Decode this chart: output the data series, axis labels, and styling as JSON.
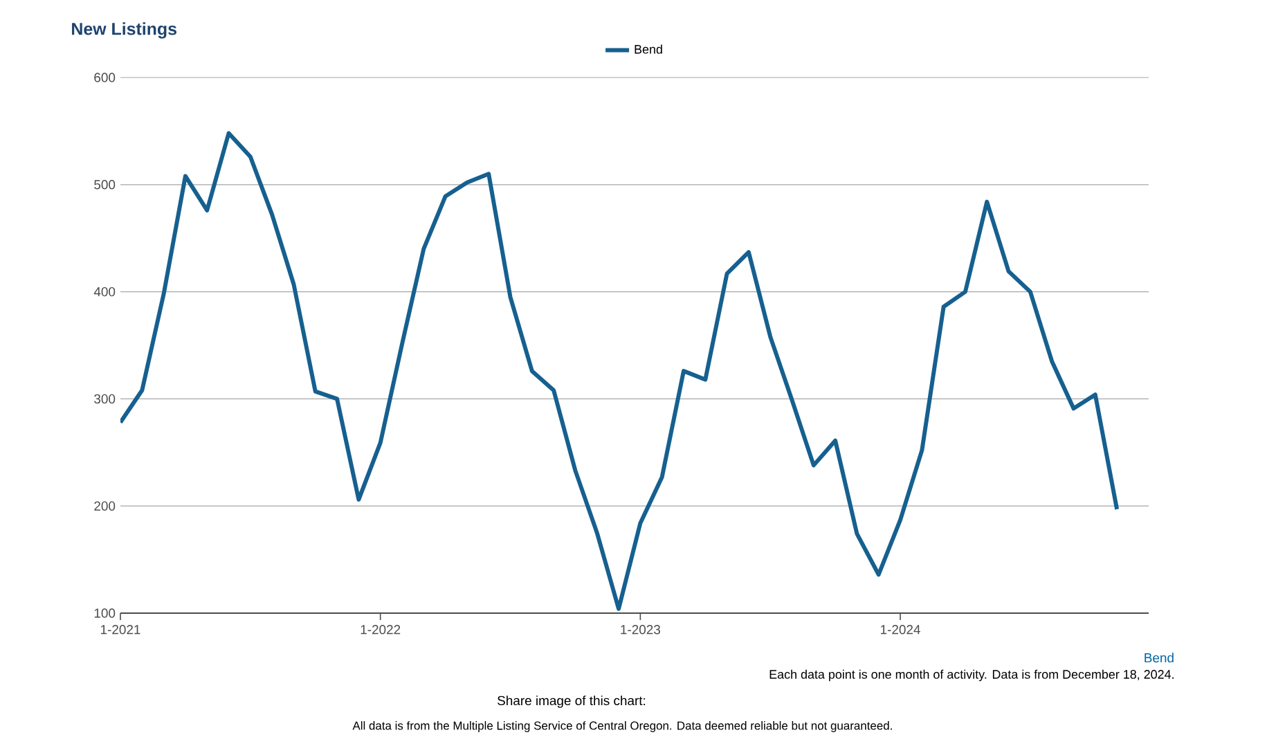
{
  "chart_data": {
    "type": "line",
    "title": "New Listings",
    "xlabel": "Bend",
    "legend": "top",
    "grid": "y",
    "line_style": "solid",
    "x": [
      "2021-01",
      "2021-02",
      "2021-03",
      "2021-04",
      "2021-05",
      "2021-06",
      "2021-07",
      "2021-08",
      "2021-09",
      "2021-10",
      "2021-11",
      "2021-12",
      "2022-01",
      "2022-02",
      "2022-03",
      "2022-04",
      "2022-05",
      "2022-06",
      "2022-07",
      "2022-08",
      "2022-09",
      "2022-10",
      "2022-11",
      "2022-12",
      "2023-01",
      "2023-02",
      "2023-03",
      "2023-04",
      "2023-05",
      "2023-06",
      "2023-07",
      "2023-08",
      "2023-09",
      "2023-10",
      "2023-11",
      "2023-12",
      "2024-01",
      "2024-02",
      "2024-03",
      "2024-04",
      "2024-05",
      "2024-06",
      "2024-07",
      "2024-08",
      "2024-09",
      "2024-10",
      "2024-11"
    ],
    "series": [
      {
        "name": "Bend",
        "color": "#16608f",
        "values": [
          278,
          308,
          398,
          508,
          476,
          548,
          526,
          472,
          407,
          307,
          300,
          206,
          259,
          351,
          440,
          489,
          502,
          510,
          395,
          326,
          308,
          233,
          175,
          104,
          184,
          227,
          326,
          318,
          417,
          437,
          358,
          299,
          238,
          261,
          174,
          136,
          187,
          252,
          386,
          400,
          484,
          419,
          400,
          335,
          291,
          304,
          197
        ]
      }
    ],
    "xlim": [
      "2021-01",
      "2024-12-15"
    ],
    "xticks": [
      {
        "value": "2021-01",
        "label": "1-2021"
      },
      {
        "value": "2022-01",
        "label": "1-2022"
      },
      {
        "value": "2023-01",
        "label": "1-2023"
      },
      {
        "value": "2024-01",
        "label": "1-2024"
      }
    ],
    "ylim": [
      100,
      600
    ],
    "yticks": [
      100,
      200,
      300,
      400,
      500,
      600
    ],
    "annotations": [
      "Each data point is one month of activity. Data is from December 18, 2024.",
      "Share image of this chart:",
      "All data is from the Multiple Listing Service of Central Oregon. Data deemed reliable but not guaranteed."
    ]
  }
}
